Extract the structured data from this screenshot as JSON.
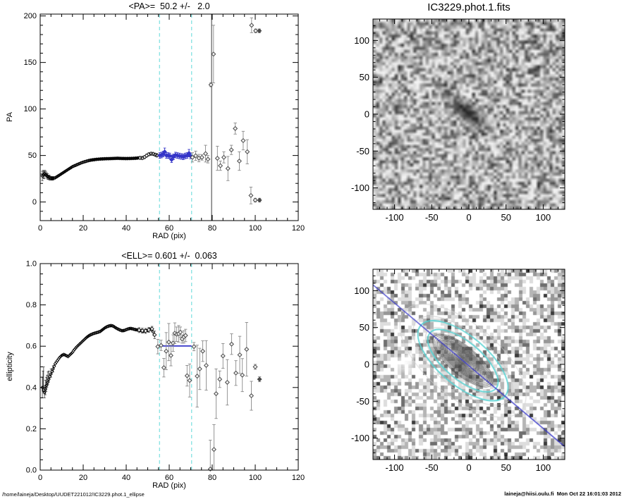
{
  "footer": {
    "left": "/home/laineja/Desktop/UUDET221012/IC3229.phot.1_ellipse",
    "right": "laineja@hiisi.oulu.fi  Mon Oct 22 16:01:03 2012"
  },
  "colors": {
    "black": "#000000",
    "blue": "#3535c8",
    "cyan_dash": "#8ce4e4",
    "cyan_ellipse": "#58d4d4",
    "gray_point": "#4a4a4a",
    "gray_err": "#8a8a8a",
    "point_fill": "#f2f2f2"
  },
  "chart_data": [
    {
      "id": "pa_plot",
      "type": "scatter",
      "title": "<PA>=  50.2 +/-   2.0",
      "xlabel": "RAD (pix)",
      "ylabel": "PA",
      "xlim": [
        0,
        120
      ],
      "ylim": [
        -20,
        202
      ],
      "xticks": [
        0,
        20,
        40,
        60,
        80,
        100,
        120
      ],
      "xtick_labels": [
        "0",
        "20",
        "40",
        "60",
        "80",
        "100",
        "120"
      ],
      "yticks": [
        0,
        50,
        100,
        150,
        200
      ],
      "ytick_labels": [
        "0",
        "50",
        "100",
        "150",
        "200"
      ],
      "x_minor": 5,
      "y_minor": 10,
      "grid": false,
      "dense_track": [
        [
          1,
          28
        ],
        [
          2,
          30.5
        ],
        [
          3,
          28.5
        ],
        [
          4,
          26.5
        ],
        [
          5,
          25.5
        ],
        [
          6,
          25.5
        ],
        [
          7,
          26
        ],
        [
          8,
          27.5
        ],
        [
          9,
          29
        ],
        [
          10,
          30.5
        ],
        [
          11,
          32
        ],
        [
          12,
          33.5
        ],
        [
          13,
          35
        ],
        [
          14,
          36.5
        ],
        [
          15,
          38
        ],
        [
          16,
          39
        ],
        [
          17,
          40
        ],
        [
          18,
          41
        ],
        [
          19,
          42
        ],
        [
          20,
          42.8
        ],
        [
          21,
          43.5
        ],
        [
          22,
          44.2
        ],
        [
          23,
          44.8
        ],
        [
          24,
          45.2
        ],
        [
          25,
          45.5
        ],
        [
          26,
          45.8
        ],
        [
          27,
          46
        ],
        [
          28,
          46.2
        ],
        [
          30,
          46.5
        ],
        [
          32,
          46.6
        ],
        [
          34,
          46.8
        ],
        [
          36,
          47
        ],
        [
          38,
          46.8
        ],
        [
          40,
          46.7
        ],
        [
          42,
          46.8
        ],
        [
          44,
          47
        ],
        [
          45,
          47.2
        ],
        [
          46,
          47.5
        ],
        [
          47,
          47.3
        ],
        [
          48,
          47.8
        ],
        [
          49,
          49
        ],
        [
          50,
          50.5
        ],
        [
          51,
          51.5
        ],
        [
          52,
          52
        ],
        [
          53,
          51.3
        ],
        [
          54,
          50.4
        ]
      ],
      "dense_err": [
        [
          1,
          28,
          5
        ],
        [
          1.4,
          30,
          4
        ],
        [
          1.8,
          29,
          4
        ],
        [
          2.2,
          31,
          3
        ],
        [
          2.6,
          30,
          3
        ],
        [
          3,
          28.5,
          3
        ],
        [
          3.5,
          27.5,
          3
        ],
        [
          4,
          26.5,
          2.5
        ],
        [
          4.5,
          26,
          2.5
        ],
        [
          5,
          25.5,
          2
        ],
        [
          5.5,
          25.4,
          2
        ],
        [
          6,
          25.5,
          1.8
        ]
      ],
      "mid_err": [
        [
          46.5,
          47.4,
          1.5
        ],
        [
          47.5,
          47.3,
          1.5
        ],
        [
          48.5,
          48.2,
          1.5
        ],
        [
          49.5,
          49.9,
          1.5
        ],
        [
          50.5,
          51.3,
          1.5
        ],
        [
          51.5,
          51.9,
          1.5
        ],
        [
          52.5,
          51.7,
          1.5
        ],
        [
          53.5,
          50.8,
          1.5
        ],
        [
          54.3,
          50.2,
          1.8
        ]
      ],
      "fit_points": [
        [
          55.6,
          50,
          3
        ],
        [
          56.4,
          50.5,
          3
        ],
        [
          57.2,
          51.5,
          3
        ],
        [
          57.9,
          54,
          4
        ],
        [
          58.7,
          50,
          3
        ],
        [
          59.5,
          50,
          3
        ],
        [
          60.3,
          49.5,
          3
        ],
        [
          61.1,
          45.5,
          3
        ],
        [
          62,
          48.5,
          3
        ],
        [
          62.9,
          50.5,
          3
        ],
        [
          63.8,
          50,
          3
        ],
        [
          64.7,
          49.5,
          3
        ],
        [
          65.6,
          49,
          3
        ],
        [
          66.5,
          48.5,
          3
        ],
        [
          67.4,
          49.5,
          3
        ],
        [
          68.3,
          50,
          3
        ],
        [
          69.2,
          52.5,
          4
        ],
        [
          69.9,
          49.5,
          3
        ]
      ],
      "outliers": [
        [
          70.8,
          48,
          5,
          0
        ],
        [
          72.3,
          49.7,
          5,
          0
        ],
        [
          73.8,
          47.2,
          4,
          0
        ],
        [
          75.2,
          48,
          3,
          0
        ],
        [
          76.9,
          52,
          9,
          0
        ],
        [
          78,
          46,
          4,
          0
        ],
        [
          79.4,
          126,
          2,
          0
        ],
        [
          80.6,
          159,
          31,
          0
        ],
        [
          82.4,
          47,
          13,
          0
        ],
        [
          83.8,
          39,
          5,
          0
        ],
        [
          85.4,
          48,
          6,
          0
        ],
        [
          87.3,
          36,
          13,
          0
        ],
        [
          88.9,
          56,
          5,
          0
        ],
        [
          90.7,
          79,
          6,
          0
        ],
        [
          92.6,
          44,
          10,
          0
        ],
        [
          94.4,
          66,
          10,
          0
        ],
        [
          96.3,
          54,
          13,
          0
        ],
        [
          98.3,
          190,
          8,
          0
        ],
        [
          100.2,
          184,
          2,
          0
        ],
        [
          101.9,
          184,
          2,
          1
        ],
        [
          98,
          7,
          9,
          0
        ],
        [
          100,
          2,
          2,
          0
        ],
        [
          102,
          2,
          2,
          1
        ]
      ],
      "fit_line": {
        "y": 50.2,
        "x1": 55.5,
        "x2": 70.4
      },
      "dashed_lines_x": [
        55.5,
        70.4
      ],
      "solid_line_x": 79.7
    },
    {
      "id": "fits_image",
      "type": "heatmap",
      "title": "IC3229.phot.1.fits",
      "xlim": [
        -129,
        129
      ],
      "ylim": [
        -129,
        129
      ],
      "xticks": [
        -100,
        -50,
        0,
        50,
        100
      ],
      "xtick_labels": [
        "-100",
        "-50",
        "0",
        "50",
        "100"
      ],
      "yticks": [
        -100,
        -50,
        0,
        50,
        100
      ],
      "ytick_labels": [
        "-100",
        "-50",
        "0",
        "50",
        "100"
      ],
      "minor_step": 10,
      "noise": {
        "seed": 1234567,
        "n": 62,
        "style": "smooth"
      },
      "galaxy": {
        "cx": -2,
        "cy": 2,
        "a": 54,
        "b": 18,
        "core_a": 26,
        "core_b": 10,
        "tilt_deg": 40
      },
      "smudge": {
        "cx": -95,
        "cy": 11,
        "r": 9
      }
    },
    {
      "id": "ell_plot",
      "type": "scatter",
      "title": "<ELL>= 0.601 +/-  0.063",
      "xlabel": "RAD (pix)",
      "ylabel": "ellipticity",
      "xlim": [
        0,
        120
      ],
      "ylim": [
        0,
        1
      ],
      "xticks": [
        0,
        20,
        40,
        60,
        80,
        100,
        120
      ],
      "xtick_labels": [
        "0",
        "20",
        "40",
        "60",
        "80",
        "100",
        "120"
      ],
      "yticks": [
        0,
        0.2,
        0.4,
        0.6,
        0.8,
        1.0
      ],
      "ytick_labels": [
        "0.0",
        "0.2",
        "0.4",
        "0.6",
        "0.8",
        "1.0"
      ],
      "x_minor": 5,
      "y_minor": 0.05,
      "grid": false,
      "dense_track": [
        [
          1,
          0.4
        ],
        [
          2,
          0.375
        ],
        [
          3,
          0.41
        ],
        [
          4,
          0.44
        ],
        [
          5,
          0.465
        ],
        [
          6,
          0.49
        ],
        [
          7,
          0.515
        ],
        [
          8,
          0.53
        ],
        [
          9,
          0.545
        ],
        [
          10,
          0.555
        ],
        [
          11,
          0.56
        ],
        [
          12,
          0.555
        ],
        [
          13,
          0.55
        ],
        [
          14,
          0.56
        ],
        [
          15,
          0.57
        ],
        [
          16,
          0.585
        ],
        [
          17,
          0.597
        ],
        [
          18,
          0.607
        ],
        [
          19,
          0.617
        ],
        [
          20,
          0.627
        ],
        [
          21,
          0.637
        ],
        [
          22,
          0.646
        ],
        [
          23,
          0.653
        ],
        [
          24,
          0.658
        ],
        [
          25,
          0.662
        ],
        [
          26,
          0.665
        ],
        [
          27,
          0.668
        ],
        [
          28,
          0.672
        ],
        [
          29,
          0.68
        ],
        [
          30,
          0.688
        ],
        [
          31,
          0.694
        ],
        [
          32,
          0.698
        ],
        [
          33,
          0.7
        ],
        [
          34,
          0.697
        ],
        [
          35,
          0.69
        ],
        [
          36,
          0.684
        ],
        [
          37,
          0.679
        ],
        [
          38,
          0.675
        ],
        [
          39,
          0.676
        ],
        [
          40,
          0.68
        ],
        [
          41,
          0.684
        ],
        [
          42,
          0.686
        ],
        [
          43,
          0.684
        ],
        [
          44,
          0.681
        ],
        [
          45,
          0.679
        ],
        [
          46,
          0.678
        ],
        [
          47,
          0.675
        ],
        [
          48,
          0.673
        ],
        [
          49,
          0.674
        ],
        [
          50,
          0.677
        ],
        [
          51,
          0.681
        ],
        [
          52,
          0.684
        ],
        [
          53,
          0.655
        ]
      ],
      "dense_err": [
        [
          1,
          0.4,
          0.05
        ],
        [
          1.3,
          0.43,
          0.05
        ],
        [
          1.6,
          0.45,
          0.05
        ],
        [
          2,
          0.38,
          0.03
        ],
        [
          2.4,
          0.4,
          0.035
        ],
        [
          2.8,
          0.415,
          0.035
        ],
        [
          3.2,
          0.43,
          0.03
        ],
        [
          3.6,
          0.445,
          0.03
        ],
        [
          4,
          0.455,
          0.025
        ],
        [
          5,
          0.47,
          0.02
        ],
        [
          6,
          0.49,
          0.015
        ]
      ],
      "mid_err": [
        [
          46,
          0.678,
          0.012
        ],
        [
          47.5,
          0.675,
          0.012
        ],
        [
          49,
          0.674,
          0.012
        ],
        [
          50.5,
          0.679,
          0.012
        ],
        [
          52,
          0.684,
          0.012
        ],
        [
          53.2,
          0.655,
          0.018
        ]
      ],
      "fit_points": [],
      "outliers": [
        [
          54.7,
          0.598,
          0.035,
          0
        ],
        [
          56.2,
          0.604,
          0.025,
          0
        ],
        [
          57.5,
          0.496,
          0.045,
          0
        ],
        [
          58.6,
          0.576,
          0.09,
          0
        ],
        [
          59.8,
          0.62,
          0.09,
          0
        ],
        [
          60.8,
          0.555,
          0.05,
          0
        ],
        [
          61.8,
          0.615,
          0.04,
          0
        ],
        [
          62.6,
          0.663,
          0.05,
          0
        ],
        [
          63.5,
          0.658,
          0.035,
          0
        ],
        [
          64.4,
          0.66,
          0.04,
          0
        ],
        [
          65.2,
          0.668,
          0.025,
          0
        ],
        [
          66,
          0.635,
          0.02,
          0
        ],
        [
          66.8,
          0.645,
          0.03,
          0
        ],
        [
          67.6,
          0.652,
          0.03,
          0
        ],
        [
          68.3,
          0.457,
          0.05,
          0
        ],
        [
          69.5,
          0.434,
          0.08,
          0
        ],
        [
          71.5,
          0.598,
          0.02,
          0
        ],
        [
          73,
          0.455,
          0.15,
          0
        ],
        [
          74.2,
          0.49,
          0.1,
          0
        ],
        [
          75.6,
          0.576,
          0.05,
          0
        ],
        [
          77.2,
          0.507,
          0.12,
          0
        ],
        [
          79.1,
          0.005,
          0.14,
          0
        ],
        [
          80.8,
          0.1,
          0.12,
          0
        ],
        [
          81.8,
          0.37,
          0.12,
          0
        ],
        [
          83.5,
          0.44,
          0.04,
          0
        ],
        [
          85,
          0.553,
          0.06,
          0
        ],
        [
          87,
          0.425,
          0.11,
          0
        ],
        [
          89,
          0.61,
          0.05,
          0
        ],
        [
          91,
          0.47,
          0.06,
          0
        ],
        [
          92.8,
          0.558,
          0.09,
          0
        ],
        [
          94,
          0.46,
          0.08,
          0
        ],
        [
          96,
          0.585,
          0.13,
          0
        ],
        [
          98.2,
          0.36,
          0.07,
          0
        ],
        [
          100,
          0.5,
          0.012,
          0
        ],
        [
          102,
          0.44,
          0.012,
          1
        ]
      ],
      "fit_line": {
        "y": 0.601,
        "x1": 55.5,
        "x2": 70.4
      },
      "dashed_lines_x": [
        55.5,
        70.4
      ],
      "solid_line_x": null
    },
    {
      "id": "contour_image",
      "type": "heatmap",
      "title": "",
      "xlim": [
        -129,
        129
      ],
      "ylim": [
        -129,
        129
      ],
      "xticks": [
        -100,
        -50,
        0,
        50,
        100
      ],
      "xtick_labels": [
        "-100",
        "-50",
        "0",
        "50",
        "100"
      ],
      "yticks": [
        -100,
        -50,
        0,
        50,
        100
      ],
      "ytick_labels": [
        "-100",
        "-50",
        "0",
        "50",
        "100"
      ],
      "minor_step": 10,
      "noise": {
        "seed": 987654,
        "n": 54,
        "style": "blocky"
      },
      "contours": {
        "cx": -8,
        "cy": 5,
        "tilt_deg": 40,
        "axis_ratio": 0.38,
        "a_min": 2.5,
        "a_max": 52
      },
      "faint_ellipses": [
        [
          62,
          26,
          "#c4c4c4"
        ],
        [
          82,
          37,
          "#cbcbcb"
        ],
        [
          103,
          49,
          "#d2d2d2"
        ]
      ],
      "cyan_ellipses": [
        [
          58,
          25
        ],
        [
          74,
          33
        ]
      ],
      "white_mask": {
        "cx": -85,
        "cy": 2,
        "r": 15
      },
      "blue_line": {
        "slope": -0.85,
        "x0": -8,
        "y0": 5
      }
    }
  ]
}
